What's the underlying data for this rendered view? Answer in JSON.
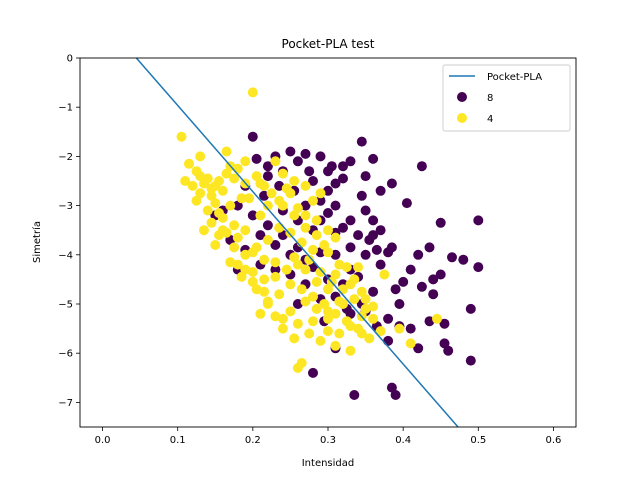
{
  "chart_data": {
    "type": "scatter",
    "title": "Pocket-PLA test",
    "xlabel": "Intensidad",
    "ylabel": "Simetría",
    "xlim": [
      -0.03,
      0.63
    ],
    "ylim": [
      -7.5,
      0
    ],
    "xticks": [
      0.0,
      0.1,
      0.2,
      0.3,
      0.4,
      0.5,
      0.6
    ],
    "xtick_labels": [
      "0.0",
      "0.1",
      "0.2",
      "0.3",
      "0.4",
      "0.5",
      "0.6"
    ],
    "yticks": [
      0,
      -1,
      -2,
      -3,
      -4,
      -5,
      -6,
      -7
    ],
    "ytick_labels": [
      "0",
      "−1",
      "−2",
      "−3",
      "−4",
      "−5",
      "−6",
      "−7"
    ],
    "grid": false,
    "legend": {
      "placement": "top-right",
      "entries": [
        "Pocket-PLA",
        "8",
        "4"
      ]
    },
    "line": {
      "name": "Pocket-PLA",
      "color": "#1f77b4",
      "x": [
        0.045,
        0.473
      ],
      "y": [
        0.0,
        -7.5
      ]
    },
    "series": [
      {
        "name": "8",
        "color": "#440154",
        "points": [
          [
            0.2,
            -1.6
          ],
          [
            0.23,
            -2.0
          ],
          [
            0.25,
            -1.9
          ],
          [
            0.27,
            -1.95
          ],
          [
            0.29,
            -2.0
          ],
          [
            0.33,
            -2.1
          ],
          [
            0.345,
            -1.7
          ],
          [
            0.36,
            -2.05
          ],
          [
            0.32,
            -2.2
          ],
          [
            0.3,
            -2.3
          ],
          [
            0.26,
            -2.1
          ],
          [
            0.24,
            -2.3
          ],
          [
            0.22,
            -2.4
          ],
          [
            0.28,
            -2.5
          ],
          [
            0.31,
            -2.55
          ],
          [
            0.35,
            -2.4
          ],
          [
            0.37,
            -2.7
          ],
          [
            0.385,
            -2.55
          ],
          [
            0.425,
            -2.2
          ],
          [
            0.405,
            -2.95
          ],
          [
            0.3,
            -2.7
          ],
          [
            0.29,
            -2.9
          ],
          [
            0.31,
            -3.0
          ],
          [
            0.33,
            -3.3
          ],
          [
            0.35,
            -3.1
          ],
          [
            0.36,
            -3.3
          ],
          [
            0.37,
            -3.5
          ],
          [
            0.34,
            -3.6
          ],
          [
            0.32,
            -3.45
          ],
          [
            0.3,
            -3.15
          ],
          [
            0.28,
            -3.5
          ],
          [
            0.26,
            -3.3
          ],
          [
            0.24,
            -3.1
          ],
          [
            0.22,
            -3.4
          ],
          [
            0.2,
            -3.2
          ],
          [
            0.18,
            -3.0
          ],
          [
            0.16,
            -3.1
          ],
          [
            0.15,
            -3.2
          ],
          [
            0.17,
            -3.7
          ],
          [
            0.19,
            -3.9
          ],
          [
            0.21,
            -3.6
          ],
          [
            0.23,
            -3.8
          ],
          [
            0.25,
            -4.0
          ],
          [
            0.27,
            -4.1
          ],
          [
            0.29,
            -3.95
          ],
          [
            0.31,
            -4.0
          ],
          [
            0.33,
            -4.3
          ],
          [
            0.35,
            -4.0
          ],
          [
            0.37,
            -4.2
          ],
          [
            0.385,
            -3.85
          ],
          [
            0.4,
            -4.55
          ],
          [
            0.42,
            -4.0
          ],
          [
            0.435,
            -3.85
          ],
          [
            0.45,
            -4.4
          ],
          [
            0.465,
            -4.05
          ],
          [
            0.48,
            -4.1
          ],
          [
            0.5,
            -4.25
          ],
          [
            0.44,
            -4.5
          ],
          [
            0.425,
            -4.65
          ],
          [
            0.39,
            -4.7
          ],
          [
            0.36,
            -4.75
          ],
          [
            0.345,
            -5.0
          ],
          [
            0.33,
            -5.2
          ],
          [
            0.31,
            -4.85
          ],
          [
            0.29,
            -4.9
          ],
          [
            0.27,
            -4.6
          ],
          [
            0.25,
            -4.4
          ],
          [
            0.23,
            -4.3
          ],
          [
            0.21,
            -4.2
          ],
          [
            0.18,
            -4.3
          ],
          [
            0.38,
            -5.3
          ],
          [
            0.395,
            -5.45
          ],
          [
            0.41,
            -5.5
          ],
          [
            0.435,
            -5.35
          ],
          [
            0.455,
            -5.8
          ],
          [
            0.46,
            -5.95
          ],
          [
            0.49,
            -6.15
          ],
          [
            0.42,
            -5.9
          ],
          [
            0.395,
            -5.0
          ],
          [
            0.365,
            -5.45
          ],
          [
            0.35,
            -5.15
          ],
          [
            0.45,
            -3.35
          ],
          [
            0.5,
            -3.3
          ],
          [
            0.49,
            -5.1
          ],
          [
            0.385,
            -6.7
          ],
          [
            0.39,
            -6.85
          ],
          [
            0.335,
            -6.85
          ],
          [
            0.28,
            -6.4
          ],
          [
            0.24,
            -3.6
          ],
          [
            0.26,
            -3.85
          ],
          [
            0.28,
            -4.25
          ],
          [
            0.3,
            -4.5
          ],
          [
            0.32,
            -4.6
          ],
          [
            0.34,
            -4.45
          ],
          [
            0.355,
            -3.7
          ],
          [
            0.33,
            -3.85
          ],
          [
            0.31,
            -3.55
          ],
          [
            0.29,
            -3.3
          ],
          [
            0.27,
            -3.0
          ],
          [
            0.255,
            -2.7
          ],
          [
            0.235,
            -2.6
          ],
          [
            0.215,
            -2.8
          ],
          [
            0.19,
            -2.6
          ],
          [
            0.205,
            -2.05
          ],
          [
            0.22,
            -2.2
          ],
          [
            0.275,
            -2.3
          ],
          [
            0.305,
            -2.2
          ],
          [
            0.32,
            -2.45
          ],
          [
            0.345,
            -2.8
          ],
          [
            0.36,
            -3.6
          ],
          [
            0.365,
            -3.9
          ],
          [
            0.38,
            -3.95
          ],
          [
            0.41,
            -4.3
          ],
          [
            0.44,
            -4.8
          ],
          [
            0.455,
            -5.4
          ],
          [
            0.38,
            -5.75
          ],
          [
            0.31,
            -5.9
          ],
          [
            0.325,
            -5.1
          ],
          [
            0.295,
            -5.35
          ],
          [
            0.26,
            -5.0
          ]
        ]
      },
      {
        "name": "4",
        "color": "#fde725",
        "points": [
          [
            0.2,
            -0.7
          ],
          [
            0.105,
            -1.6
          ],
          [
            0.13,
            -2.0
          ],
          [
            0.115,
            -2.15
          ],
          [
            0.125,
            -2.3
          ],
          [
            0.14,
            -2.45
          ],
          [
            0.11,
            -2.5
          ],
          [
            0.15,
            -2.6
          ],
          [
            0.16,
            -2.7
          ],
          [
            0.13,
            -2.75
          ],
          [
            0.17,
            -2.2
          ],
          [
            0.165,
            -1.9
          ],
          [
            0.175,
            -2.45
          ],
          [
            0.19,
            -2.55
          ],
          [
            0.185,
            -2.85
          ],
          [
            0.15,
            -2.95
          ],
          [
            0.14,
            -3.1
          ],
          [
            0.16,
            -3.25
          ],
          [
            0.175,
            -3.4
          ],
          [
            0.155,
            -3.6
          ],
          [
            0.19,
            -3.5
          ],
          [
            0.21,
            -3.2
          ],
          [
            0.22,
            -3.0
          ],
          [
            0.235,
            -2.9
          ],
          [
            0.25,
            -2.75
          ],
          [
            0.215,
            -2.6
          ],
          [
            0.205,
            -2.4
          ],
          [
            0.24,
            -2.35
          ],
          [
            0.23,
            -2.1
          ],
          [
            0.255,
            -2.5
          ],
          [
            0.26,
            -3.05
          ],
          [
            0.27,
            -3.2
          ],
          [
            0.285,
            -3.3
          ],
          [
            0.3,
            -3.5
          ],
          [
            0.31,
            -3.65
          ],
          [
            0.295,
            -3.8
          ],
          [
            0.28,
            -3.9
          ],
          [
            0.265,
            -3.75
          ],
          [
            0.25,
            -3.55
          ],
          [
            0.235,
            -3.45
          ],
          [
            0.22,
            -3.7
          ],
          [
            0.205,
            -3.85
          ],
          [
            0.19,
            -4.0
          ],
          [
            0.18,
            -4.2
          ],
          [
            0.2,
            -4.35
          ],
          [
            0.215,
            -4.5
          ],
          [
            0.23,
            -4.45
          ],
          [
            0.245,
            -4.3
          ],
          [
            0.26,
            -4.2
          ],
          [
            0.275,
            -4.1
          ],
          [
            0.29,
            -4.35
          ],
          [
            0.305,
            -4.55
          ],
          [
            0.32,
            -4.7
          ],
          [
            0.335,
            -4.9
          ],
          [
            0.35,
            -5.1
          ],
          [
            0.36,
            -5.3
          ],
          [
            0.37,
            -5.55
          ],
          [
            0.355,
            -5.7
          ],
          [
            0.34,
            -5.5
          ],
          [
            0.325,
            -5.35
          ],
          [
            0.31,
            -5.2
          ],
          [
            0.295,
            -5.0
          ],
          [
            0.28,
            -4.85
          ],
          [
            0.265,
            -4.7
          ],
          [
            0.25,
            -4.6
          ],
          [
            0.235,
            -4.8
          ],
          [
            0.22,
            -5.0
          ],
          [
            0.21,
            -5.2
          ],
          [
            0.24,
            -5.3
          ],
          [
            0.26,
            -5.4
          ],
          [
            0.275,
            -5.6
          ],
          [
            0.255,
            -5.7
          ],
          [
            0.29,
            -5.75
          ],
          [
            0.31,
            -5.85
          ],
          [
            0.33,
            -5.95
          ],
          [
            0.345,
            -5.6
          ],
          [
            0.265,
            -6.2
          ],
          [
            0.26,
            -6.3
          ],
          [
            0.3,
            -5.15
          ],
          [
            0.315,
            -4.95
          ],
          [
            0.375,
            -4.4
          ],
          [
            0.395,
            -5.5
          ],
          [
            0.41,
            -5.8
          ],
          [
            0.445,
            -5.3
          ],
          [
            0.28,
            -2.9
          ],
          [
            0.29,
            -2.75
          ],
          [
            0.27,
            -2.6
          ],
          [
            0.245,
            -2.65
          ],
          [
            0.195,
            -2.85
          ],
          [
            0.17,
            -3.0
          ],
          [
            0.145,
            -3.35
          ],
          [
            0.135,
            -3.5
          ],
          [
            0.16,
            -3.5
          ],
          [
            0.18,
            -3.65
          ],
          [
            0.2,
            -3.95
          ],
          [
            0.215,
            -4.1
          ],
          [
            0.23,
            -4.15
          ],
          [
            0.255,
            -4.05
          ],
          [
            0.27,
            -4.3
          ],
          [
            0.285,
            -4.55
          ],
          [
            0.3,
            -4.7
          ],
          [
            0.31,
            -4.4
          ],
          [
            0.325,
            -4.25
          ],
          [
            0.335,
            -4.5
          ],
          [
            0.345,
            -4.75
          ],
          [
            0.32,
            -5.0
          ],
          [
            0.3,
            -5.3
          ],
          [
            0.285,
            -5.1
          ],
          [
            0.27,
            -4.95
          ],
          [
            0.25,
            -5.15
          ],
          [
            0.23,
            -5.25
          ],
          [
            0.215,
            -4.75
          ],
          [
            0.2,
            -4.55
          ],
          [
            0.185,
            -4.45
          ],
          [
            0.17,
            -4.15
          ],
          [
            0.15,
            -3.8
          ],
          [
            0.125,
            -2.9
          ],
          [
            0.12,
            -2.6
          ],
          [
            0.135,
            -2.55
          ],
          [
            0.145,
            -2.8
          ],
          [
            0.155,
            -2.5
          ],
          [
            0.165,
            -2.35
          ],
          [
            0.18,
            -2.25
          ],
          [
            0.19,
            -2.1
          ],
          [
            0.21,
            -2.55
          ],
          [
            0.225,
            -2.75
          ],
          [
            0.24,
            -3.0
          ],
          [
            0.255,
            -3.2
          ],
          [
            0.27,
            -3.45
          ],
          [
            0.285,
            -3.6
          ],
          [
            0.3,
            -3.95
          ],
          [
            0.315,
            -4.2
          ],
          [
            0.33,
            -4.6
          ],
          [
            0.34,
            -4.25
          ],
          [
            0.35,
            -4.9
          ],
          [
            0.36,
            -5.05
          ],
          [
            0.345,
            -5.25
          ],
          [
            0.33,
            -5.45
          ],
          [
            0.315,
            -5.6
          ],
          [
            0.3,
            -5.55
          ],
          [
            0.28,
            -5.35
          ],
          [
            0.24,
            -5.5
          ],
          [
            0.22,
            -4.95
          ],
          [
            0.205,
            -4.7
          ],
          [
            0.19,
            -4.3
          ],
          [
            0.175,
            -3.85
          ],
          [
            0.165,
            -3.55
          ],
          [
            0.155,
            -3.15
          ],
          [
            0.145,
            -2.65
          ],
          [
            0.13,
            -2.4
          ]
        ]
      }
    ]
  }
}
